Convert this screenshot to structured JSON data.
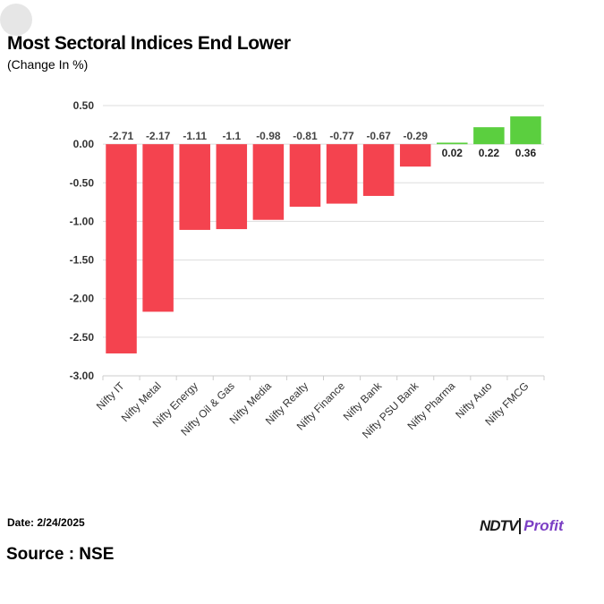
{
  "title": "Most Sectoral Indices End Lower",
  "subtitle": "(Change In %)",
  "footer": {
    "date": "Date: 2/24/2025",
    "source": "Source : NSE"
  },
  "logo": {
    "brand": "NDTV",
    "product": "Profit"
  },
  "colors": {
    "negative": "#f4434f",
    "positive": "#5bcf3f",
    "grid": "#dddddd",
    "axis_text": "#333333"
  },
  "chart_data": {
    "type": "bar",
    "categories": [
      "Nifty IT",
      "Nifty Metal",
      "Nifty Energy",
      "Nifty Oil & Gas",
      "Nifty Media",
      "Nifty Realty",
      "Nifty Finance",
      "Nifty Bank",
      "Nifty PSU Bank",
      "Nifty Pharma",
      "Nifty Auto",
      "Nifty FMCG"
    ],
    "values": [
      -2.71,
      -2.17,
      -1.11,
      -1.1,
      -0.98,
      -0.81,
      -0.77,
      -0.67,
      -0.29,
      0.02,
      0.22,
      0.36
    ],
    "data_labels": [
      "-2.71",
      "-2.17",
      "-1.11",
      "-1.1",
      "-0.98",
      "-0.81",
      "-0.77",
      "-0.67",
      "-0.29",
      "0.02",
      "0.22",
      "0.36"
    ],
    "y_ticks": [
      "0.50",
      "0.00",
      "-0.50",
      "-1.00",
      "-1.50",
      "-2.00",
      "-2.50",
      "-3.00"
    ],
    "ylim": [
      -3.0,
      0.5
    ],
    "xlabel": "",
    "ylabel": "",
    "grid": true,
    "legend": "none"
  }
}
